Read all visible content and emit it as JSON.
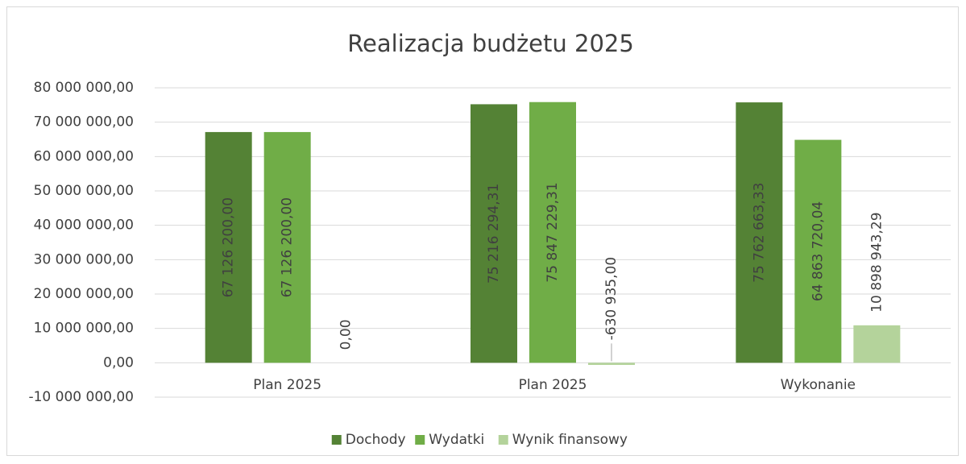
{
  "chart_data": {
    "type": "bar",
    "title": "Realizacja budżetu 2025",
    "categories": [
      "Plan 2025",
      "Plan 2025",
      "Wykonanie"
    ],
    "series": [
      {
        "name": "Dochody",
        "color": "#548235",
        "values": [
          67126200,
          75216294.31,
          75762663.33
        ],
        "value_labels": [
          "67 126 200,00",
          "75 216 294,31",
          "75 762 663,33"
        ]
      },
      {
        "name": "Wydatki",
        "color": "#70ad47",
        "values": [
          67126200,
          75847229.31,
          64863720.04
        ],
        "value_labels": [
          "67 126 200,00",
          "75 847 229,31",
          "64 863 720,04"
        ]
      },
      {
        "name": "Wynik finansowy",
        "color": "#b4d39b",
        "values": [
          0,
          -630935,
          10898943.29
        ],
        "value_labels": [
          "0,00",
          "-630 935,00",
          "10 898 943,29"
        ]
      }
    ],
    "ylim": [
      -10000000,
      80000000
    ],
    "yticks": [
      {
        "value": -10000000,
        "label": "-10 000 000,00"
      },
      {
        "value": 0,
        "label": "0,00"
      },
      {
        "value": 10000000,
        "label": "10 000 000,00"
      },
      {
        "value": 20000000,
        "label": "20 000 000,00"
      },
      {
        "value": 30000000,
        "label": "30 000 000,00"
      },
      {
        "value": 40000000,
        "label": "40 000 000,00"
      },
      {
        "value": 50000000,
        "label": "50 000 000,00"
      },
      {
        "value": 60000000,
        "label": "60 000 000,00"
      },
      {
        "value": 70000000,
        "label": "70 000 000,00"
      },
      {
        "value": 80000000,
        "label": "80 000 000,00"
      }
    ],
    "grid": true,
    "legend": "bottom"
  }
}
